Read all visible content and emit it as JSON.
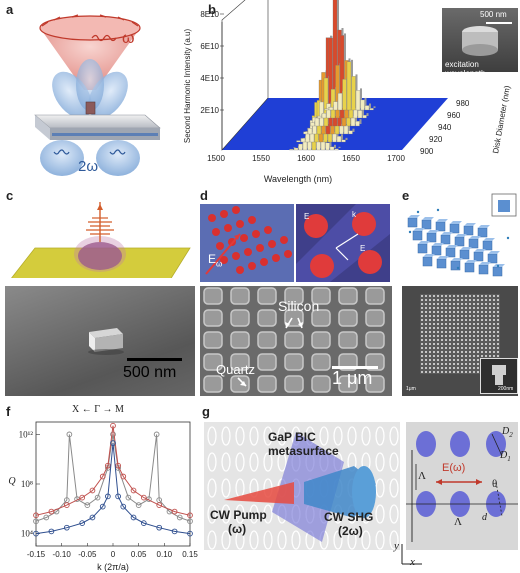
{
  "panels": {
    "a": {
      "label": "a",
      "omega": "ω",
      "two_omega": "2ω"
    },
    "b": {
      "label": "b",
      "inset_scale": "500 nm",
      "inset_caption": "excitation wavelength"
    },
    "c": {
      "label": "c",
      "scale": "500 nm"
    },
    "d": {
      "label": "d",
      "e_field": "E",
      "e_field_sub": "ω",
      "silicon": "Silicon",
      "quartz": "Quartz",
      "scale": "1 μm",
      "sub_e": "E",
      "sub_e2": "E",
      "sub_k": "k"
    },
    "e": {
      "label": "e",
      "scale1": "1μm",
      "scale2": "200nm"
    },
    "f": {
      "label": "f",
      "title": "X ← Γ → M"
    },
    "g": {
      "label": "g",
      "metasurface": "GaP BIC",
      "metasurface2": "metasurface",
      "pump": "CW Pump",
      "pump2": "(ω)",
      "shg": "CW SHG",
      "shg2": "(2ω)",
      "efield": "E(ω)",
      "d2": "D",
      "d2sub": "2",
      "d1": "D",
      "d1sub": "1",
      "lambda1": "Λ",
      "lambda2": "Λ",
      "theta": "θ",
      "d": "d",
      "y": "y",
      "x": "x"
    }
  },
  "chart_data": [
    {
      "type": "bar",
      "panel": "b",
      "title": "",
      "xlabel": "Wavelength (nm)",
      "ylabel": "Second Harmonic Intensity (a.u)",
      "zlabel": "Disk Diameter (nm)",
      "xlim": [
        1500,
        1700
      ],
      "xticks": [
        "1500",
        "1550",
        "1600",
        "1650",
        "1700"
      ],
      "yticks": [
        "2E10",
        "4E10",
        "6E10",
        "8E10"
      ],
      "zticks": [
        "900",
        "920",
        "940",
        "960",
        "980"
      ],
      "ylim": [
        0,
        80000000000.0
      ],
      "x": [
        1575,
        1580,
        1585,
        1590,
        1595,
        1600,
        1605,
        1610,
        1615,
        1620,
        1625
      ],
      "series": [
        {
          "values": [
            2000000000.0,
            5000000000.0,
            15000000000.0,
            30000000000.0,
            55000000000.0,
            86000000000.0,
            60000000000.0,
            35000000000.0,
            18000000000.0,
            8000000000.0,
            3000000000.0
          ]
        }
      ]
    },
    {
      "type": "scatter",
      "panel": "f",
      "title": "X ← Γ → M",
      "xlabel": "k (2π/a)",
      "ylabel": "Q",
      "xlim": [
        -0.15,
        0.15
      ],
      "xticks": [
        "-0.15",
        "-0.10",
        "-0.05",
        "0",
        "0.05",
        "0.10",
        "0.15"
      ],
      "yticks": [
        "10⁴",
        "10⁸",
        "10¹²"
      ],
      "yscale": "log",
      "ylim": [
        1000,
        10000000000000.0
      ],
      "colors": {
        "grey": "#8a8a8a",
        "red": "#c0504d",
        "blue": "#2f4f8f"
      },
      "series": [
        {
          "x": [
            -0.15,
            -0.13,
            -0.11,
            -0.09,
            -0.085,
            -0.07,
            -0.05,
            -0.03,
            -0.01,
            0,
            0.01,
            0.03,
            0.05,
            0.07,
            0.085,
            0.09,
            0.11,
            0.13,
            0.15
          ],
          "y": [
            100000.0,
            200000.0,
            600000.0,
            5000000.0,
            1000000000000.0,
            6000000.0,
            2000000.0,
            8000000.0,
            2000000000.0,
            1000000000000.0,
            2000000000.0,
            8000000.0,
            2000000.0,
            6000000.0,
            1000000000000.0,
            5000000.0,
            600000.0,
            200000.0,
            100000.0
          ]
        },
        {
          "x": [
            -0.15,
            -0.12,
            -0.09,
            -0.06,
            -0.04,
            -0.02,
            -0.01,
            0,
            0.01,
            0.02,
            0.04,
            0.06,
            0.09,
            0.12,
            0.15
          ],
          "y": [
            300000.0,
            600000.0,
            2000000.0,
            8000000.0,
            30000000.0,
            400000000.0,
            3000000000.0,
            5000000000000.0,
            3000000000.0,
            400000000.0,
            30000000.0,
            8000000.0,
            2000000.0,
            600000.0,
            300000.0
          ]
        },
        {
          "x": [
            -0.15,
            -0.12,
            -0.09,
            -0.06,
            -0.04,
            -0.02,
            -0.01,
            0,
            0.01,
            0.02,
            0.04,
            0.06,
            0.09,
            0.12,
            0.15
          ],
          "y": [
            10000.0,
            15000.0,
            30000.0,
            70000.0,
            200000.0,
            1500000.0,
            10000000.0,
            200000000000.0,
            10000000.0,
            1500000.0,
            200000.0,
            70000.0,
            30000.0,
            15000.0,
            10000.0
          ]
        }
      ]
    }
  ]
}
